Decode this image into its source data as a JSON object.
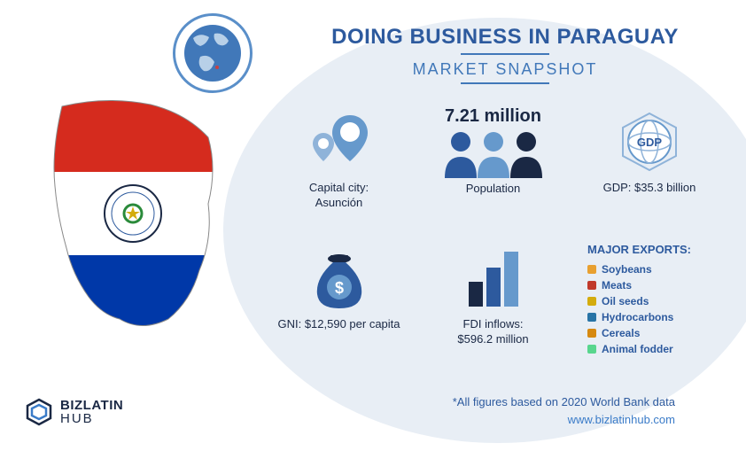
{
  "title": "DOING BUSINESS IN PARAGUAY",
  "subtitle": "MARKET SNAPSHOT",
  "colors": {
    "bg_ellipse": "#e8eef5",
    "primary": "#2d5a9e",
    "accent": "#4178b9",
    "dark": "#1a2844",
    "mid_blue": "#6699cc",
    "light_blue": "#8fb3d9",
    "flag_red": "#d52b1e",
    "flag_blue": "#0038a8",
    "flag_white": "#ffffff"
  },
  "stats": {
    "capital": {
      "label": "Capital city:",
      "value": "Asunción"
    },
    "population": {
      "value": "7.21 million",
      "label": "Population"
    },
    "gdp": {
      "label": "GDP: $35.3 billion",
      "badge": "GDP"
    },
    "gni": {
      "label": "GNI: $12,590 per capita"
    },
    "fdi": {
      "label": "FDI inflows:",
      "value": "$596.2 million"
    }
  },
  "exports": {
    "title": "MAJOR EXPORTS:",
    "items": [
      {
        "label": "Soybeans",
        "color": "#e8a030"
      },
      {
        "label": "Meats",
        "color": "#c0392b"
      },
      {
        "label": "Oil seeds",
        "color": "#d4ac0d"
      },
      {
        "label": "Hydrocarbons",
        "color": "#2874a6"
      },
      {
        "label": "Cereals",
        "color": "#d68910"
      },
      {
        "label": "Animal fodder",
        "color": "#58d68d"
      }
    ]
  },
  "footnote": "*All figures based on 2020 World Bank data",
  "url": "www.bizlatinhub.com",
  "logo": {
    "line1": "BIZLATIN",
    "line2": "HUB"
  }
}
